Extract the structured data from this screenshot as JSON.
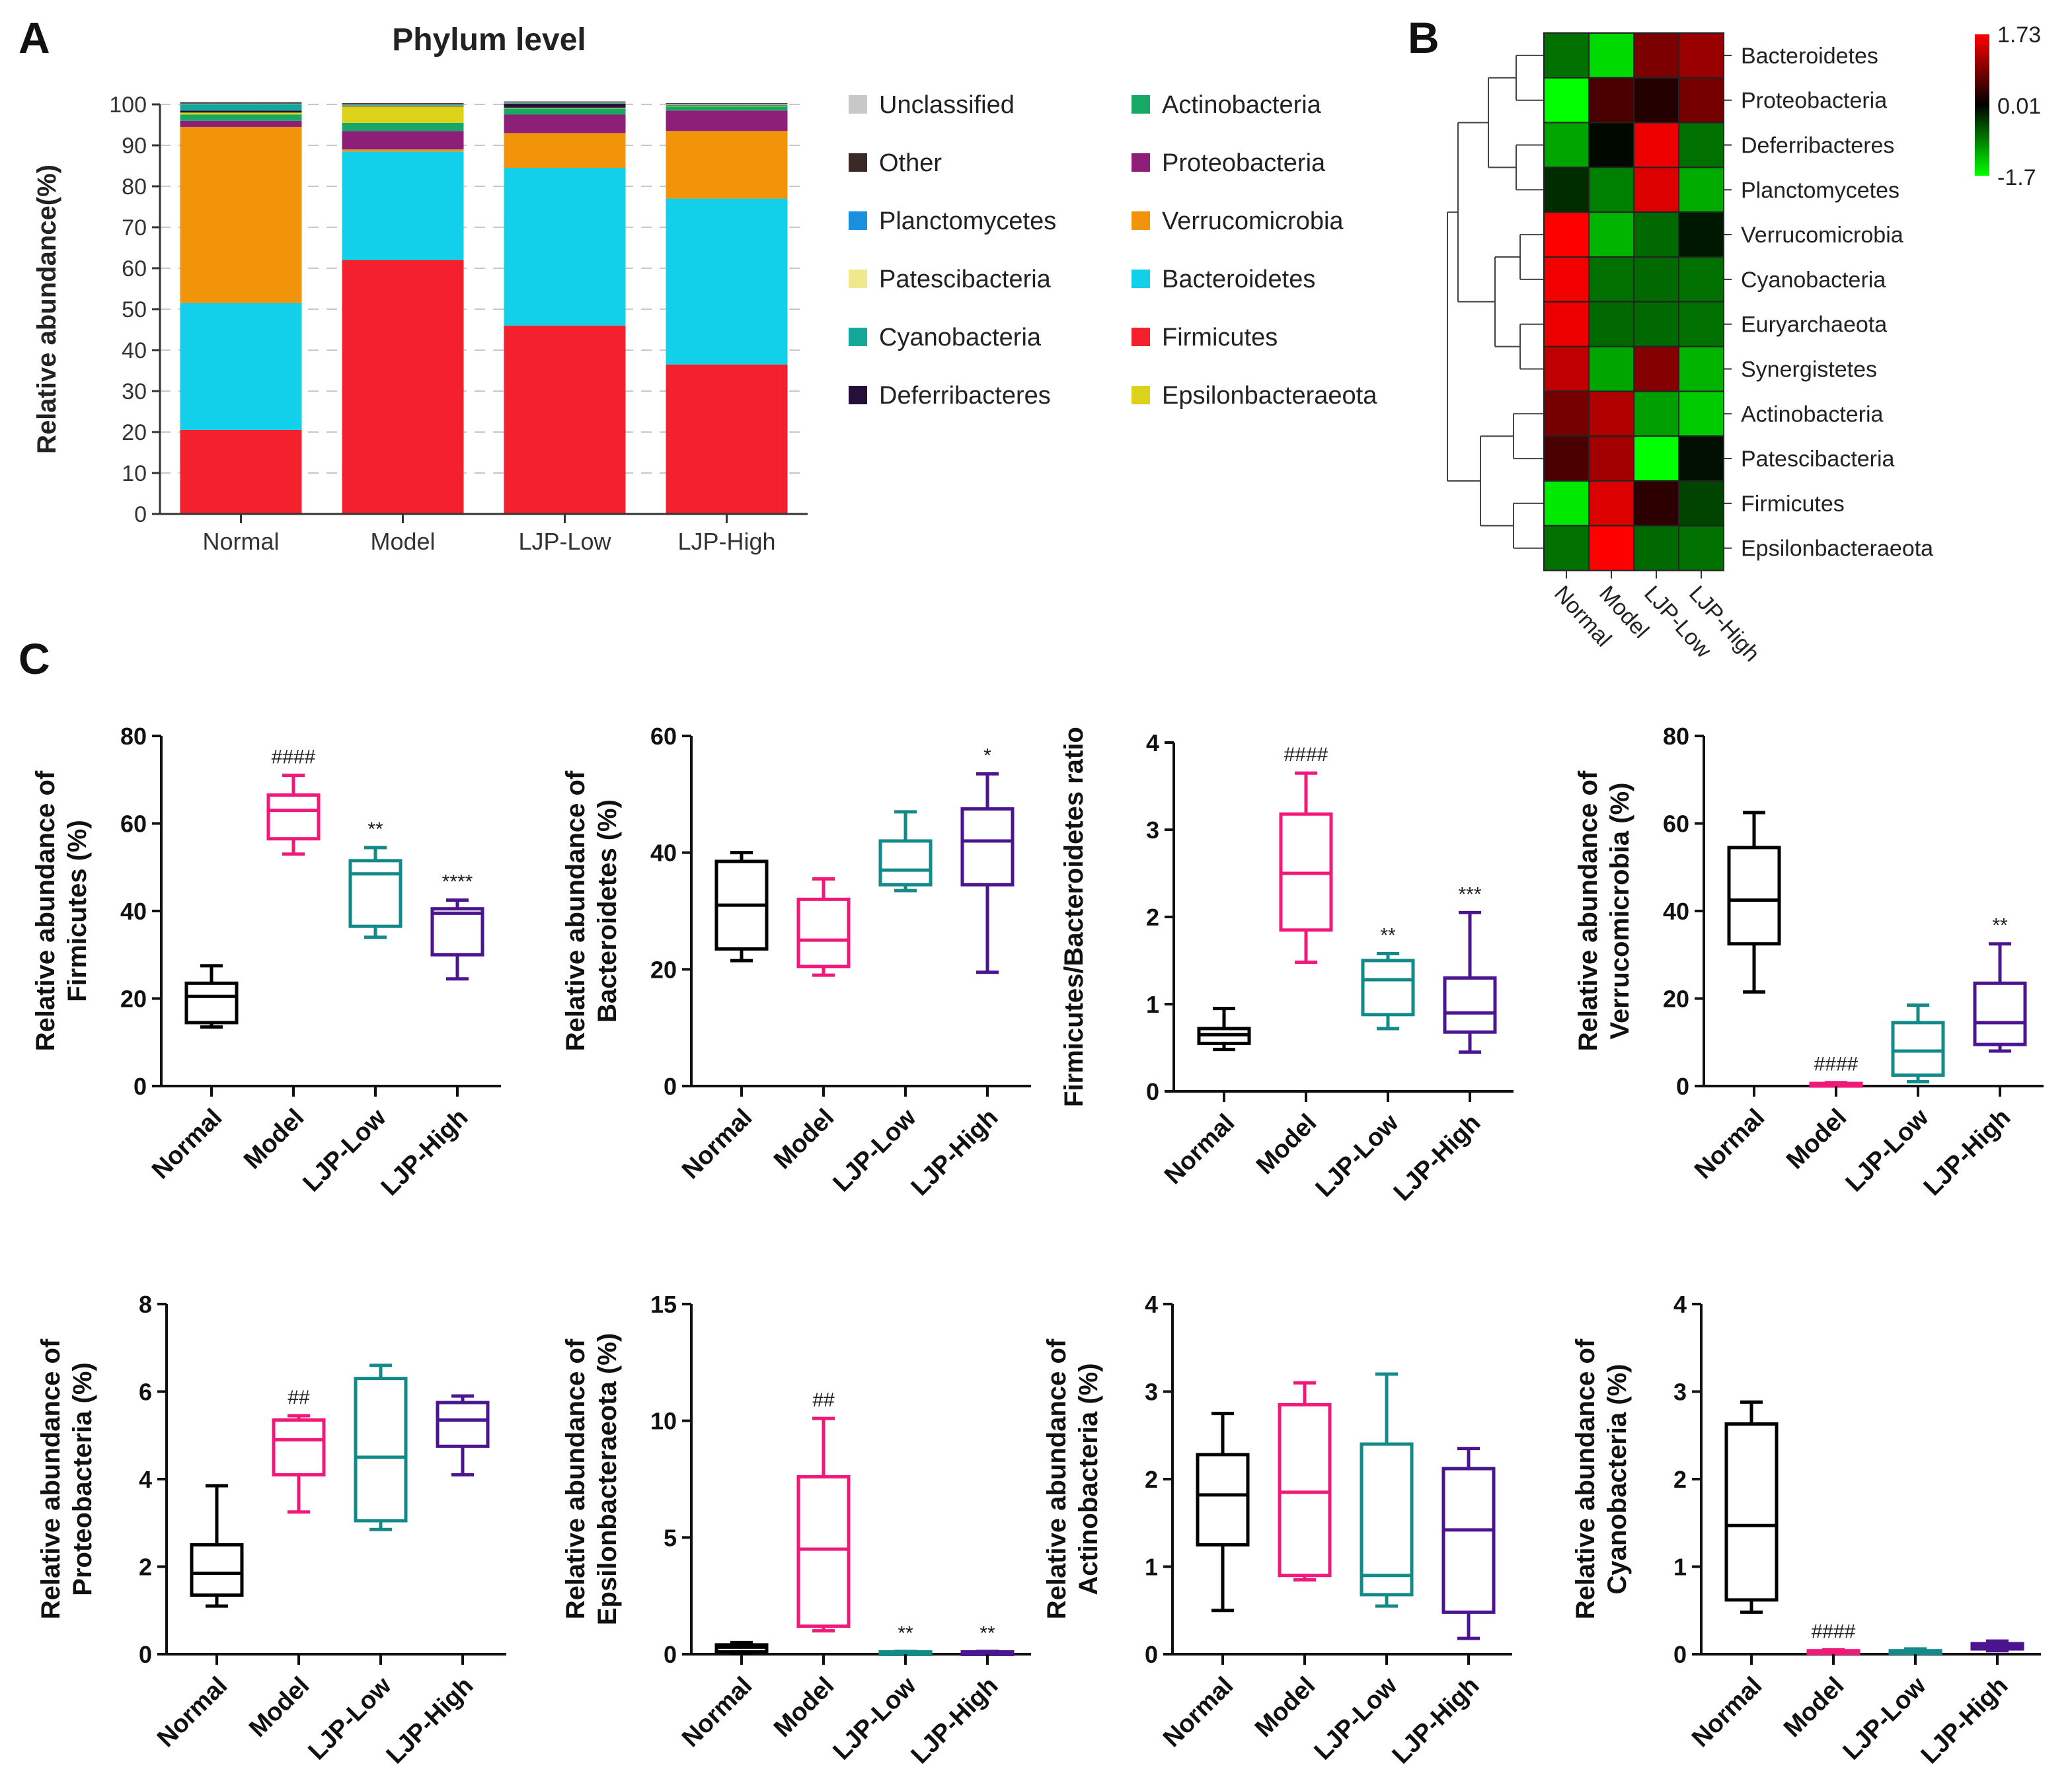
{
  "panel_labels": [
    "A",
    "B",
    "C"
  ],
  "colors": {
    "Unclassified": "#c8c8c8",
    "Other": "#3a2a26",
    "Planctomycetes": "#1a8fe0",
    "Patescibacteria": "#efe88c",
    "Cyanobacteria": "#14a89a",
    "Deferribacteres": "#25103a",
    "Epsilonbacteraeota": "#dcd21a",
    "Actinobacteria": "#16a864",
    "Proteobacteria": "#8e1f78",
    "Verrucomicrobia": "#f2940a",
    "Bacteroidetes": "#12cfea",
    "Firmicutes": "#f5202e",
    "Normal": "#000000",
    "Model": "#f0197a",
    "LJP-Low": "#138a8a",
    "LJP-High": "#4b1590"
  },
  "chart_data": [
    {
      "id": "A",
      "type": "bar",
      "stacked": true,
      "title": "Phylum level",
      "xlabel": "",
      "ylabel": "Relative abundance(%)",
      "ylim": [
        0,
        100
      ],
      "yticks": [
        0,
        10,
        20,
        30,
        40,
        50,
        60,
        70,
        80,
        90,
        100
      ],
      "categories": [
        "Normal",
        "Model",
        "LJP-Low",
        "LJP-High"
      ],
      "series": [
        {
          "name": "Firmicutes",
          "values": [
            20.5,
            62,
            46,
            36.5
          ]
        },
        {
          "name": "Bacteroidetes",
          "values": [
            31,
            26.5,
            38.5,
            40.5
          ]
        },
        {
          "name": "Verrucomicrobia",
          "values": [
            43,
            0.5,
            8.5,
            16.5
          ]
        },
        {
          "name": "Proteobacteria",
          "values": [
            1.5,
            4.5,
            4.5,
            5.0
          ]
        },
        {
          "name": "Actinobacteria",
          "values": [
            1.5,
            2.0,
            1.5,
            1.0
          ]
        },
        {
          "name": "Epsilonbacteraeota",
          "values": [
            0.5,
            4.0,
            0.2,
            0.2
          ]
        },
        {
          "name": "Deferribacteres",
          "values": [
            0.5,
            0.2,
            1.0,
            0.1
          ]
        },
        {
          "name": "Cyanobacteria",
          "values": [
            1.5,
            0.1,
            0.1,
            0.1
          ]
        },
        {
          "name": "Patescibacteria",
          "values": [
            0.1,
            0.1,
            0.1,
            0.1
          ]
        },
        {
          "name": "Planctomycetes",
          "values": [
            0.1,
            0.1,
            0.1,
            0.1
          ]
        },
        {
          "name": "Other",
          "values": [
            0.3,
            0.3,
            0.2,
            0.2
          ]
        },
        {
          "name": "Unclassified",
          "values": [
            0.0,
            0.0,
            0.1,
            0.0
          ]
        }
      ],
      "legend": [
        "Unclassified",
        "Actinobacteria",
        "Other",
        "Proteobacteria",
        "Planctomycetes",
        "Verrucomicrobia",
        "Patescibacteria",
        "Bacteroidetes",
        "Cyanobacteria",
        "Firmicutes",
        "Deferribacteres",
        "Epsilonbacteraeota"
      ],
      "legend_position": "right"
    },
    {
      "id": "B",
      "type": "heatmap",
      "columns": [
        "Normal",
        "Model",
        "LJP-Low",
        "LJP-High"
      ],
      "rows": [
        "Bacteroidetes",
        "Proteobacteria",
        "Deferribacteres",
        "Planctomycetes",
        "Verrucomicrobia",
        "Cyanobacteria",
        "Euryarchaeota",
        "Synergistetes",
        "Actinobacteria",
        "Patescibacteria",
        "Firmicutes",
        "Epsilonbacteraeota"
      ],
      "values": [
        [
          -0.75,
          -1.45,
          0.85,
          1.05
        ],
        [
          -1.7,
          0.5,
          0.25,
          0.8
        ],
        [
          -1.1,
          -0.05,
          1.6,
          -0.75
        ],
        [
          -0.3,
          -0.85,
          1.5,
          -1.15
        ],
        [
          1.73,
          -1.2,
          -0.7,
          -0.15
        ],
        [
          1.65,
          -0.75,
          -0.7,
          -0.75
        ],
        [
          1.6,
          -0.7,
          -0.7,
          -0.75
        ],
        [
          1.3,
          -1.1,
          0.9,
          -1.2
        ],
        [
          0.8,
          1.2,
          -1.05,
          -1.35
        ],
        [
          0.5,
          1.1,
          -1.7,
          -0.1
        ],
        [
          -1.55,
          1.5,
          0.3,
          -0.45
        ],
        [
          -0.75,
          1.73,
          -0.7,
          -0.75
        ]
      ],
      "scale": {
        "max": 1.73,
        "mid": 0.01,
        "min": -1.7,
        "labels": [
          "1.73",
          "0.01",
          "-1.7"
        ]
      }
    },
    {
      "id": "C1",
      "type": "box",
      "ylabel": "Relative abundance of Firmicutes (%)",
      "ylabel_lines": [
        "Relative abundance of",
        "Firmicutes (%)"
      ],
      "ylim": [
        0,
        80
      ],
      "yticks": [
        "0",
        "20",
        "40",
        "60",
        "80"
      ],
      "categories": [
        "Normal",
        "Model",
        "LJP-Low",
        "LJP-High"
      ],
      "boxes": [
        {
          "min": 13.5,
          "q1": 14.5,
          "median": 20.5,
          "q3": 23.5,
          "max": 27.5,
          "mark": ""
        },
        {
          "min": 53,
          "q1": 56.5,
          "median": 63,
          "q3": 66.5,
          "max": 71,
          "mark": "####"
        },
        {
          "min": 34,
          "q1": 36.5,
          "median": 48.5,
          "q3": 51.5,
          "max": 54.5,
          "mark": "**"
        },
        {
          "min": 24.5,
          "q1": 30,
          "median": 39.5,
          "q3": 40.5,
          "max": 42.5,
          "mark": "****"
        }
      ]
    },
    {
      "id": "C2",
      "type": "box",
      "ylabel": "Relative abundance of Bacteroidetes (%)",
      "ylabel_lines": [
        "Relative abundance of",
        "Bacteroidetes (%)"
      ],
      "ylim": [
        0,
        60
      ],
      "yticks": [
        "0",
        "20",
        "40",
        "60"
      ],
      "categories": [
        "Normal",
        "Model",
        "LJP-Low",
        "LJP-High"
      ],
      "boxes": [
        {
          "min": 21.5,
          "q1": 23.5,
          "median": 31,
          "q3": 38.5,
          "max": 40,
          "mark": ""
        },
        {
          "min": 19,
          "q1": 20.5,
          "median": 25,
          "q3": 32,
          "max": 35.5,
          "mark": ""
        },
        {
          "min": 33.5,
          "q1": 34.5,
          "median": 37,
          "q3": 42,
          "max": 47,
          "mark": ""
        },
        {
          "min": 19.5,
          "q1": 34.5,
          "median": 42,
          "q3": 47.5,
          "max": 53.5,
          "mark": "*"
        }
      ]
    },
    {
      "id": "C3",
      "type": "box",
      "ylabel": "Firmicutes/Bacteroidetes ratio",
      "ylabel_lines": [
        "Firmicutes/Bacteroidetes ratio"
      ],
      "ylim": [
        0,
        4
      ],
      "yticks": [
        "0",
        "1",
        "2",
        "3",
        "4"
      ],
      "categories": [
        "Normal",
        "Model",
        "LJP-Low",
        "LJP-High"
      ],
      "boxes": [
        {
          "min": 0.48,
          "q1": 0.55,
          "median": 0.65,
          "q3": 0.72,
          "max": 0.95,
          "mark": ""
        },
        {
          "min": 1.48,
          "q1": 1.85,
          "median": 2.5,
          "q3": 3.18,
          "max": 3.65,
          "mark": "####"
        },
        {
          "min": 0.72,
          "q1": 0.88,
          "median": 1.28,
          "q3": 1.5,
          "max": 1.58,
          "mark": "**"
        },
        {
          "min": 0.45,
          "q1": 0.68,
          "median": 0.9,
          "q3": 1.3,
          "max": 2.05,
          "mark": "***"
        }
      ]
    },
    {
      "id": "C4",
      "type": "box",
      "ylabel": "Relative abundance of Verrucomicrobia (%)",
      "ylabel_lines": [
        "Relative abundance of",
        "Verrucomicrobia (%)"
      ],
      "ylim": [
        0,
        80
      ],
      "yticks": [
        "0",
        "20",
        "40",
        "60",
        "80"
      ],
      "categories": [
        "Normal",
        "Model",
        "LJP-Low",
        "LJP-High"
      ],
      "boxes": [
        {
          "min": 21.5,
          "q1": 32.5,
          "median": 42.5,
          "q3": 54.5,
          "max": 62.5,
          "mark": ""
        },
        {
          "min": 0.1,
          "q1": 0.2,
          "median": 0.4,
          "q3": 0.6,
          "max": 0.8,
          "mark": "####"
        },
        {
          "min": 1,
          "q1": 2.5,
          "median": 8,
          "q3": 14.5,
          "max": 18.5,
          "mark": ""
        },
        {
          "min": 8,
          "q1": 9.5,
          "median": 14.5,
          "q3": 23.5,
          "max": 32.5,
          "mark": "**"
        }
      ]
    },
    {
      "id": "C5",
      "type": "box",
      "ylabel": "Relative abundance of Proteobacteria (%)",
      "ylabel_lines": [
        "Relative abundance of",
        "Proteobacteria (%)"
      ],
      "ylim": [
        0,
        8
      ],
      "yticks": [
        "0",
        "2",
        "4",
        "6",
        "8"
      ],
      "categories": [
        "Normal",
        "Model",
        "LJP-Low",
        "LJP-High"
      ],
      "boxes": [
        {
          "min": 1.1,
          "q1": 1.35,
          "median": 1.85,
          "q3": 2.5,
          "max": 3.85,
          "mark": ""
        },
        {
          "min": 3.25,
          "q1": 4.1,
          "median": 4.9,
          "q3": 5.35,
          "max": 5.45,
          "mark": "##"
        },
        {
          "min": 2.85,
          "q1": 3.05,
          "median": 4.5,
          "q3": 6.3,
          "max": 6.6,
          "mark": ""
        },
        {
          "min": 4.1,
          "q1": 4.75,
          "median": 5.35,
          "q3": 5.75,
          "max": 5.9,
          "mark": ""
        }
      ]
    },
    {
      "id": "C6",
      "type": "box",
      "ylabel": "Relative abundance of Epsilonbacteraeota (%)",
      "ylabel_lines": [
        "Relative abundance of",
        "Epsilonbacteraeota (%)"
      ],
      "ylim": [
        0,
        15
      ],
      "yticks": [
        "0",
        "5",
        "10",
        "15"
      ],
      "categories": [
        "Normal",
        "Model",
        "LJP-Low",
        "LJP-High"
      ],
      "boxes": [
        {
          "min": 0.05,
          "q1": 0.1,
          "median": 0.3,
          "q3": 0.4,
          "max": 0.5,
          "mark": ""
        },
        {
          "min": 1.0,
          "q1": 1.2,
          "median": 4.5,
          "q3": 7.6,
          "max": 10.1,
          "mark": "##"
        },
        {
          "min": 0.02,
          "q1": 0.05,
          "median": 0.08,
          "q3": 0.1,
          "max": 0.12,
          "mark": "**"
        },
        {
          "min": 0.02,
          "q1": 0.05,
          "median": 0.08,
          "q3": 0.1,
          "max": 0.12,
          "mark": "**"
        }
      ]
    },
    {
      "id": "C7",
      "type": "box",
      "ylabel": "Relative abundance of Actinobacteria (%)",
      "ylabel_lines": [
        "Relative abundance of",
        "Actinobacteria (%)"
      ],
      "ylim": [
        0,
        4
      ],
      "yticks": [
        "0",
        "1",
        "2",
        "3",
        "4"
      ],
      "categories": [
        "Normal",
        "Model",
        "LJP-Low",
        "LJP-High"
      ],
      "boxes": [
        {
          "min": 0.5,
          "q1": 1.25,
          "median": 1.82,
          "q3": 2.28,
          "max": 2.75,
          "mark": ""
        },
        {
          "min": 0.85,
          "q1": 0.9,
          "median": 1.85,
          "q3": 2.85,
          "max": 3.1,
          "mark": ""
        },
        {
          "min": 0.55,
          "q1": 0.68,
          "median": 0.9,
          "q3": 2.4,
          "max": 3.2,
          "mark": ""
        },
        {
          "min": 0.18,
          "q1": 0.48,
          "median": 1.42,
          "q3": 2.12,
          "max": 2.35,
          "mark": ""
        }
      ]
    },
    {
      "id": "C8",
      "type": "box",
      "ylabel": "Relative abundance of Cyanobacteria (%)",
      "ylabel_lines": [
        "Relative abundance of",
        "Cyanobacteria (%)"
      ],
      "ylim": [
        0,
        4
      ],
      "yticks": [
        "0",
        "1",
        "2",
        "3",
        "4"
      ],
      "categories": [
        "Normal",
        "Model",
        "LJP-Low",
        "LJP-High"
      ],
      "boxes": [
        {
          "min": 0.48,
          "q1": 0.62,
          "median": 1.47,
          "q3": 2.63,
          "max": 2.88,
          "mark": ""
        },
        {
          "min": 0.01,
          "q1": 0.02,
          "median": 0.03,
          "q3": 0.04,
          "max": 0.05,
          "mark": "####"
        },
        {
          "min": 0.01,
          "q1": 0.02,
          "median": 0.03,
          "q3": 0.04,
          "max": 0.06,
          "mark": ""
        },
        {
          "min": 0.04,
          "q1": 0.06,
          "median": 0.09,
          "q3": 0.12,
          "max": 0.15,
          "mark": ""
        }
      ]
    }
  ]
}
